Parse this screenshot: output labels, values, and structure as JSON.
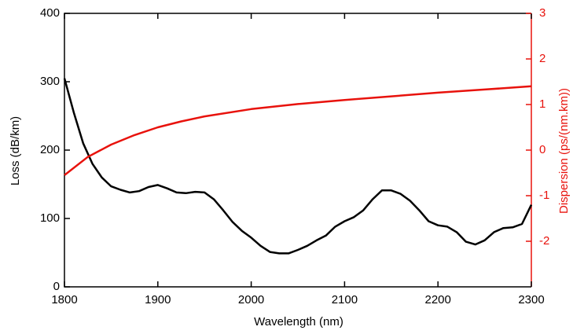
{
  "chart_data": {
    "type": "line",
    "xlabel": "Wavelength (nm)",
    "ylabel": "Loss (dB/km)",
    "y2label": "Dispersion (ps/(nm.km))",
    "xlim": [
      1800,
      2300
    ],
    "xticks": [
      1800,
      1900,
      2000,
      2100,
      2200,
      2300
    ],
    "ylim": [
      0,
      400
    ],
    "yticks": [
      0,
      100,
      200,
      300,
      400
    ],
    "y2lim": [
      -3,
      3
    ],
    "y2ticks": [
      -2,
      -1,
      0,
      1,
      2,
      3
    ],
    "y2color": "#e8120c",
    "series": [
      {
        "color": "#000000",
        "x": [
          1800,
          1810,
          1820,
          1830,
          1840,
          1850,
          1860,
          1870,
          1880,
          1890,
          1900,
          1910,
          1920,
          1930,
          1940,
          1950,
          1960,
          1970,
          1980,
          1990,
          2000,
          2010,
          2020,
          2030,
          2040,
          2050,
          2060,
          2070,
          2080,
          2090,
          2100,
          2110,
          2120,
          2130,
          2140,
          2150,
          2160,
          2170,
          2180,
          2190,
          2200,
          2210,
          2220,
          2230,
          2240,
          2250,
          2260,
          2270,
          2280,
          2290,
          2300
        ],
        "values": [
          305,
          255,
          210,
          180,
          160,
          147,
          142,
          138,
          140,
          146,
          149,
          144,
          138,
          137,
          139,
          138,
          128,
          112,
          95,
          82,
          72,
          60,
          51,
          49,
          49,
          54,
          60,
          68,
          75,
          88,
          96,
          102,
          112,
          128,
          141,
          141,
          136,
          126,
          112,
          96,
          90,
          88,
          80,
          66,
          62,
          68,
          80,
          86,
          87,
          92,
          120
        ]
      },
      {
        "color": "#e8120c",
        "axis": "y2",
        "x": [
          1800,
          1825,
          1850,
          1875,
          1900,
          1925,
          1950,
          2000,
          2050,
          2100,
          2150,
          2200,
          2250,
          2300
        ],
        "values": [
          -0.55,
          -0.15,
          0.12,
          0.33,
          0.5,
          0.63,
          0.74,
          0.9,
          1.01,
          1.1,
          1.18,
          1.26,
          1.33,
          1.4
        ]
      }
    ]
  }
}
